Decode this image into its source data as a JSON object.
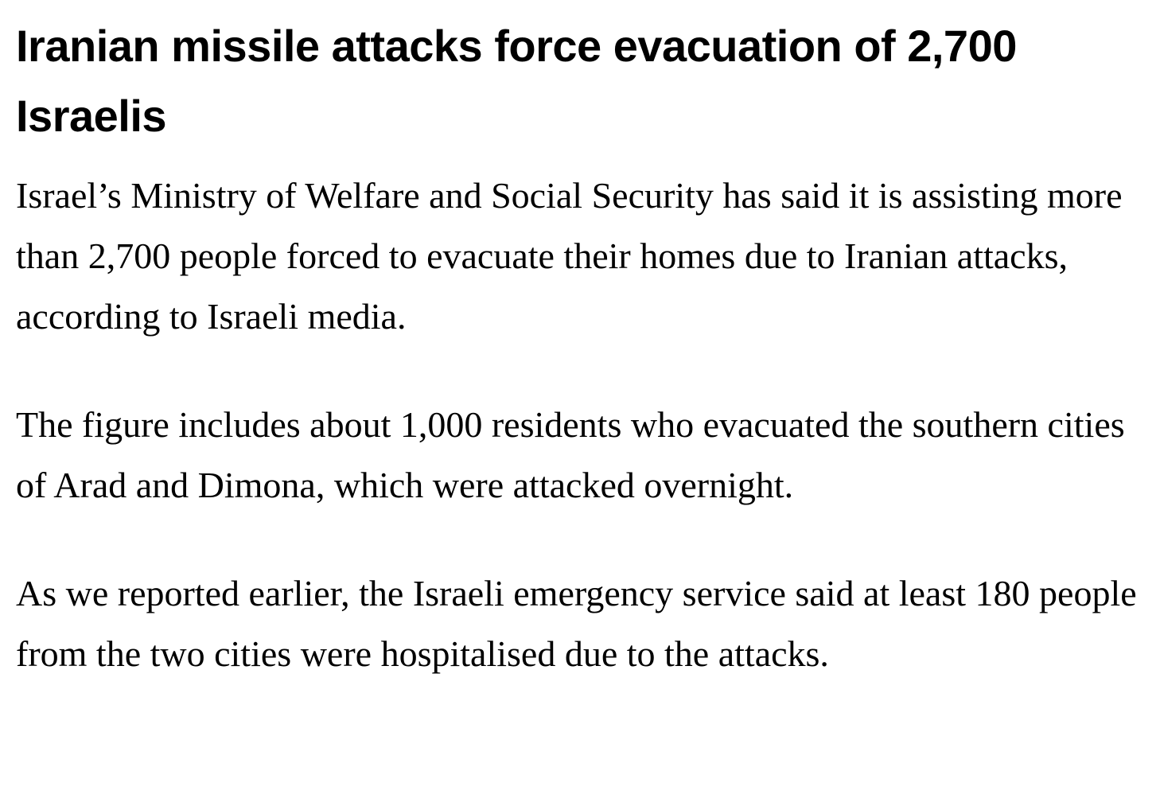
{
  "article": {
    "headline": "Iranian missile attacks force evacuation of 2,700 Israelis",
    "paragraphs": [
      "Israel’s Ministry of Welfare and Social Security has said it is as­sisting more than 2,700 people forced to evacuate their homes due to Iranian attacks, according to Israeli media.",
      "The figure includes about 1,000 residents who evacuated the southern cities of Arad and Dimona, which were attacked overnight.",
      "As we reported earlier, the Israeli emergency service said at least 180 people from the two cities were hospitalised due to the attacks."
    ]
  }
}
